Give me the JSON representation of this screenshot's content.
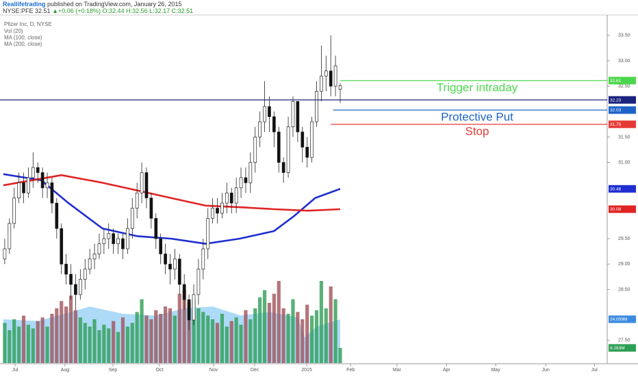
{
  "header": {
    "author": "Reallifetrading",
    "published": " published on TradingView.com, January 26, 2015",
    "ticker": "NYSE:PFE",
    "last": "32.51",
    "change": "▲+0.06 (+0.18%)",
    "ohlc": "O:32.44 H:32.56 L:32.17 C:32.51"
  },
  "chart_data": {
    "type": "candlestick",
    "title": "Pfizer Inc, D, NYSE",
    "open": [
      29.1,
      29.3,
      29.8,
      30.3,
      30.6,
      30.4,
      30.7,
      30.9,
      30.8,
      30.5,
      30.6,
      30.2,
      29.7,
      29.0,
      28.8,
      28.6,
      28.4,
      28.7,
      28.9,
      29.1,
      29.2,
      29.4,
      29.5,
      29.6,
      29.4,
      29.5,
      29.3,
      29.7,
      30.1,
      30.4,
      30.8,
      30.3,
      29.9,
      29.5,
      29.2,
      29.0,
      28.9,
      29.1,
      28.6,
      28.3,
      27.9,
      28.4,
      28.9,
      29.3,
      29.9,
      30.1,
      30.0,
      30.2,
      30.4,
      30.2,
      30.5,
      30.7,
      30.6,
      31.0,
      31.5,
      31.8,
      32.1,
      31.9,
      31.6,
      31.0,
      30.8,
      31.7,
      32.2,
      31.6,
      31.3,
      31.1,
      31.8,
      32.4,
      32.7,
      32.8,
      32.5,
      32.44
    ],
    "high": [
      29.5,
      29.9,
      30.5,
      30.8,
      30.8,
      30.9,
      31.2,
      31.0,
      30.9,
      30.8,
      30.7,
      30.3,
      29.8,
      29.2,
      29.0,
      28.8,
      28.9,
      29.1,
      29.3,
      29.4,
      29.6,
      29.7,
      29.8,
      29.7,
      29.6,
      29.6,
      29.9,
      30.3,
      30.6,
      31.0,
      30.9,
      30.4,
      30.0,
      29.6,
      29.4,
      29.2,
      29.3,
      29.2,
      28.8,
      28.4,
      28.6,
      29.1,
      29.5,
      30.1,
      30.3,
      30.3,
      30.4,
      30.6,
      30.5,
      30.7,
      30.9,
      30.9,
      31.2,
      31.7,
      32.0,
      32.6,
      32.3,
      32.0,
      31.7,
      31.1,
      31.9,
      32.3,
      32.2,
      31.7,
      31.5,
      31.9,
      32.6,
      33.3,
      33.1,
      33.5,
      33.1,
      32.56
    ],
    "low": [
      29.0,
      29.2,
      29.7,
      30.2,
      30.2,
      30.3,
      30.5,
      30.6,
      30.3,
      30.3,
      30.0,
      29.5,
      28.8,
      28.6,
      28.3,
      28.1,
      28.3,
      28.5,
      28.8,
      28.9,
      29.1,
      29.2,
      29.3,
      29.2,
      29.2,
      29.1,
      29.2,
      29.5,
      29.9,
      30.2,
      30.1,
      29.7,
      29.3,
      29.0,
      28.8,
      28.6,
      28.7,
      28.4,
      28.1,
      27.7,
      27.8,
      28.2,
      28.7,
      29.1,
      29.8,
      29.8,
      29.9,
      30.0,
      30.0,
      30.0,
      30.3,
      30.4,
      30.4,
      30.8,
      31.3,
      31.6,
      31.6,
      31.3,
      30.8,
      30.6,
      30.7,
      31.5,
      31.4,
      31.0,
      30.9,
      31.0,
      31.7,
      32.2,
      32.4,
      32.3,
      32.3,
      32.17
    ],
    "close": [
      29.3,
      29.8,
      30.3,
      30.6,
      30.4,
      30.7,
      30.9,
      30.8,
      30.5,
      30.6,
      30.2,
      29.7,
      29.0,
      28.8,
      28.6,
      28.4,
      28.7,
      28.9,
      29.1,
      29.2,
      29.4,
      29.5,
      29.6,
      29.4,
      29.5,
      29.3,
      29.7,
      30.1,
      30.4,
      30.8,
      30.3,
      29.9,
      29.5,
      29.2,
      29.0,
      28.9,
      29.1,
      28.6,
      28.3,
      27.9,
      28.4,
      28.9,
      29.3,
      29.9,
      30.1,
      30.0,
      30.2,
      30.4,
      30.2,
      30.5,
      30.7,
      30.6,
      31.0,
      31.5,
      31.8,
      32.1,
      31.9,
      31.6,
      31.0,
      30.8,
      31.7,
      32.2,
      31.6,
      31.3,
      31.1,
      31.8,
      32.4,
      32.7,
      32.8,
      32.5,
      32.9,
      32.51
    ],
    "volume": [
      22,
      18,
      24,
      20,
      26,
      21,
      19,
      23,
      25,
      20,
      27,
      30,
      34,
      31,
      37,
      29,
      25,
      22,
      20,
      24,
      18,
      21,
      19,
      23,
      17,
      25,
      20,
      22,
      28,
      35,
      26,
      24,
      29,
      27,
      31,
      30,
      26,
      38,
      40,
      33,
      35,
      30,
      28,
      26,
      24,
      22,
      27,
      20,
      23,
      25,
      21,
      29,
      24,
      30,
      36,
      40,
      33,
      38,
      45,
      30,
      27,
      35,
      28,
      24,
      32,
      26,
      29,
      45,
      30,
      42,
      35,
      8.283
    ],
    "volume_last_label": "8.283M",
    "volume_lim": [
      0,
      60
    ],
    "up_color": "#ffffff",
    "down_color": "#111111",
    "volume_up_color": "#2e9e55",
    "volume_down_color": "#a0525a",
    "xlim": [
      -1,
      127.5
    ],
    "xticks": [
      {
        "value": 2.2,
        "label": "Jul"
      },
      {
        "value": 12.75,
        "label": "Aug"
      },
      {
        "value": 22.9,
        "label": "Sep"
      },
      {
        "value": 32.75,
        "label": "Oct"
      },
      {
        "value": 44.2,
        "label": "Nov"
      },
      {
        "value": 52.9,
        "label": "Dec"
      },
      {
        "value": 63.9,
        "label": "2015"
      },
      {
        "value": 73.2,
        "label": "Feb"
      },
      {
        "value": 83,
        "label": "Mar"
      },
      {
        "value": 93.5,
        "label": "Apr"
      },
      {
        "value": 103.9,
        "label": "May"
      },
      {
        "value": 114.5,
        "label": "Jun"
      },
      {
        "value": 124.8,
        "label": "Jul"
      }
    ],
    "ylim": [
      27.04,
      33.9
    ],
    "yticks": [
      {
        "value": 27.5,
        "label": "27.50"
      },
      {
        "value": 28.5,
        "label": "28.50"
      },
      {
        "value": 29,
        "label": "29.00"
      },
      {
        "value": 29.5,
        "label": "29.50"
      },
      {
        "value": 31,
        "label": "31.00"
      },
      {
        "value": 31.5,
        "label": "31.50"
      },
      {
        "value": 32.5,
        "label": "32.50"
      },
      {
        "value": 33,
        "label": "33.00"
      },
      {
        "value": 33.5,
        "label": "33.50"
      }
    ],
    "series": [
      {
        "name": "Vol (20)",
        "color": "#9fd3f5",
        "axis": "volume",
        "x": [
          -0.3,
          7,
          14,
          18,
          25,
          32,
          38,
          44,
          50,
          56,
          62,
          63.5,
          66,
          71
        ],
        "values": [
          24,
          23,
          28,
          31,
          27,
          26,
          30,
          31,
          26,
          28,
          25,
          14,
          20,
          24.009
        ],
        "last_label": "24.009M"
      },
      {
        "name": "MA (100, close)",
        "color": "#1f2ed0",
        "x": [
          -0.3,
          7.7,
          13.5,
          20.7,
          28,
          35.2,
          42.5,
          49.7,
          57,
          61.3,
          65.7,
          71
        ],
        "values": [
          30.77,
          30.65,
          30.2,
          29.7,
          29.55,
          29.5,
          29.4,
          29.5,
          29.65,
          29.95,
          30.3,
          30.48
        ]
      },
      {
        "name": "MA (200, close)",
        "color": "#e02424",
        "x": [
          -0.3,
          12,
          20.7,
          28,
          35.2,
          42.5,
          49.7,
          57,
          64.2,
          71
        ],
        "values": [
          30.55,
          30.75,
          30.6,
          30.45,
          30.3,
          30.15,
          30.12,
          30.08,
          30.05,
          30.08
        ]
      }
    ],
    "levels": [
      {
        "value": 32.61,
        "color": "#4cd64c",
        "start": 71,
        "label": "Trigger intraday"
      },
      {
        "value": 32.23,
        "color": "#1a237e",
        "start": -1
      },
      {
        "value": 32.03,
        "color": "#1e64c8",
        "start": 69.5,
        "label": "Protective Put"
      },
      {
        "value": 31.75,
        "color": "#e53935",
        "start": 69,
        "label": "Stop"
      }
    ]
  }
}
